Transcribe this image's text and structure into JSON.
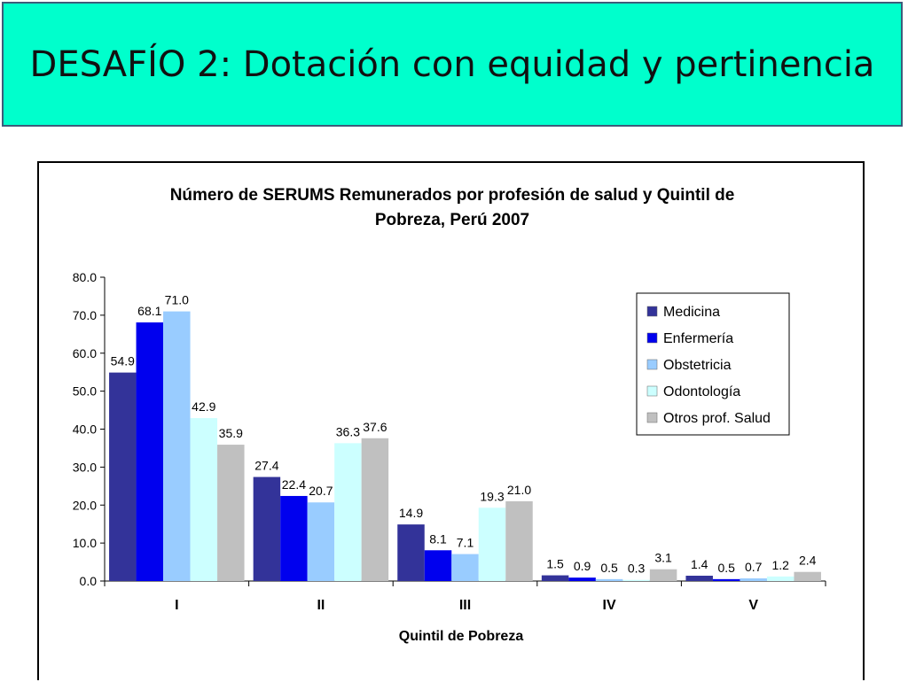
{
  "slide": {
    "title": "DESAFÍO 2: Dotación con equidad y pertinencia"
  },
  "colors": {
    "banner": "#00ffcc",
    "series": [
      "#333399",
      "#0000ee",
      "#99ccff",
      "#ccffff",
      "#c0c0c0"
    ]
  },
  "chart_data": {
    "type": "bar",
    "title_line1": "Número de SERUMS Remunerados por profesión de salud y Quintil de",
    "title_line2": "Pobreza, Perú 2007",
    "xlabel": "Quintil de Pobreza",
    "ylabel": "",
    "ylim": [
      0,
      80
    ],
    "yticks": [
      "0.0",
      "10.0",
      "20.0",
      "30.0",
      "40.0",
      "50.0",
      "60.0",
      "70.0",
      "80.0"
    ],
    "categories": [
      "I",
      "II",
      "III",
      "IV",
      "V"
    ],
    "series": [
      {
        "name": "Medicina",
        "values": [
          54.9,
          27.4,
          14.9,
          1.5,
          1.4
        ],
        "labels": [
          "54.9",
          "27.4",
          "14.9",
          "1.5",
          "1.4"
        ]
      },
      {
        "name": "Enfermería",
        "values": [
          68.1,
          22.4,
          8.1,
          0.9,
          0.5
        ],
        "labels": [
          "68.1",
          "22.4",
          "8.1",
          "0.9",
          "0.5"
        ]
      },
      {
        "name": "Obstetricia",
        "values": [
          71.0,
          20.7,
          7.1,
          0.5,
          0.7
        ],
        "labels": [
          "71.0",
          "20.7",
          "7.1",
          "0.5",
          "0.7"
        ]
      },
      {
        "name": "Odontología",
        "values": [
          42.9,
          36.3,
          19.3,
          0.3,
          1.2
        ],
        "labels": [
          "42.9",
          "36.3",
          "19.3",
          "0.3",
          "1.2"
        ]
      },
      {
        "name": "Otros prof. Salud",
        "values": [
          35.9,
          37.6,
          21.0,
          3.1,
          2.4
        ],
        "labels": [
          "35.9",
          "37.6",
          "21.0",
          "3.1",
          "2.4"
        ]
      }
    ],
    "grid": false,
    "legend_position": "top-right"
  }
}
